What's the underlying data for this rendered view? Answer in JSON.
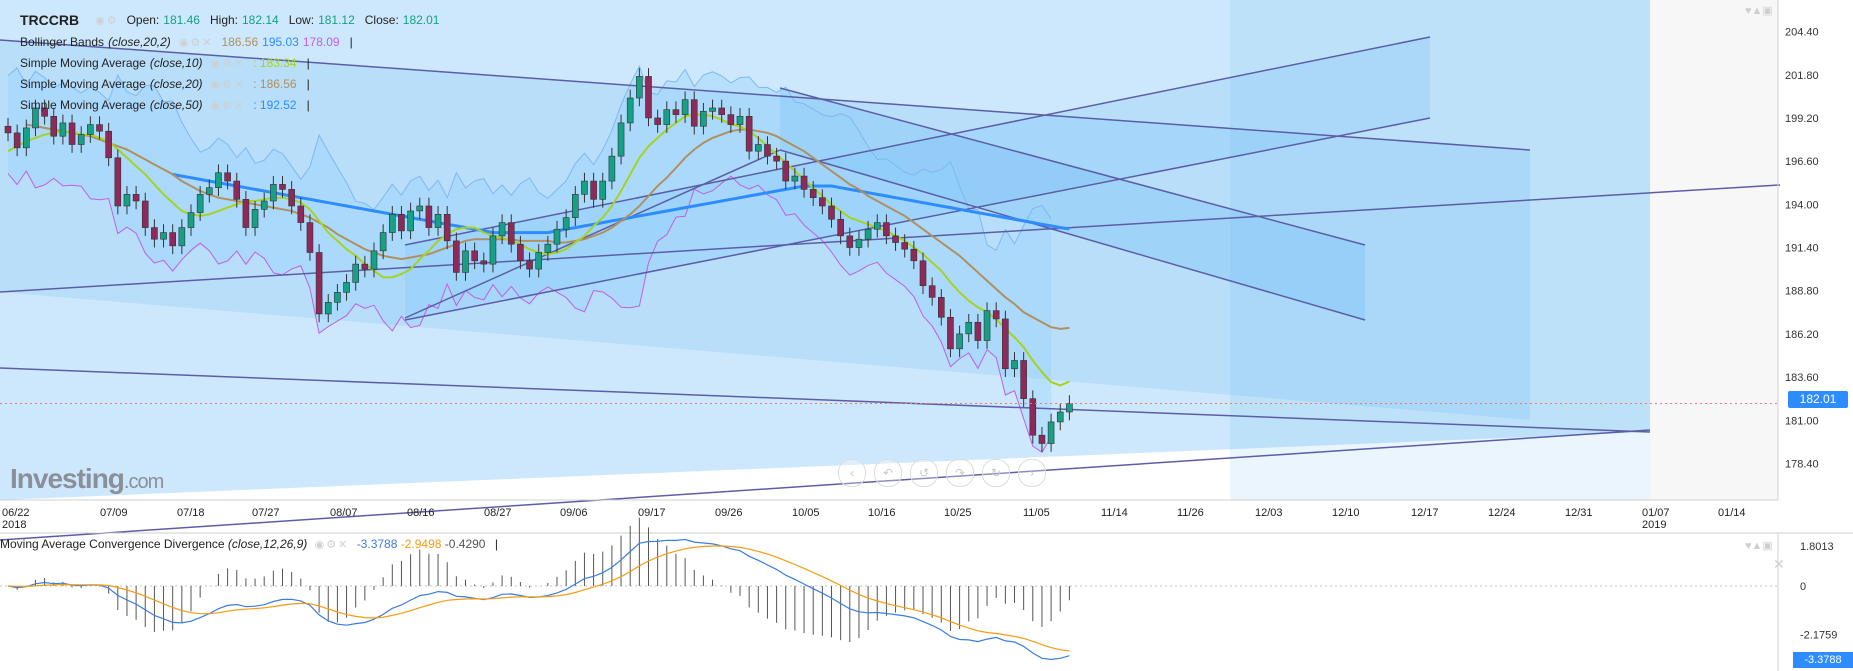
{
  "header": {
    "symbol": "TRCCRB",
    "open_label": "Open:",
    "open": "181.46",
    "high_label": "High:",
    "high": "182.14",
    "low_label": "Low:",
    "low": "181.12",
    "close_label": "Close:",
    "close": "182.01"
  },
  "indicators": {
    "bb": {
      "name": "Bollinger Bands",
      "params": "(close,20,2)",
      "v1": "186.56",
      "v2": "195.03",
      "v3": "178.09"
    },
    "sma10": {
      "name": "Simple Moving Average",
      "params": "(close,10)",
      "value": ": 183.34"
    },
    "sma20": {
      "name": "Simple Moving Average",
      "params": "(close,20)",
      "value": ": 186.56"
    },
    "sma50": {
      "name": "Simple Moving Average",
      "params": "(close,50)",
      "value": ": 192.52"
    }
  },
  "macd": {
    "name": "Moving Average Convergence Divergence",
    "params": "(close,12,26,9)",
    "v1": "-3.3788",
    "v2": "-2.9498",
    "v3": "-0.4290",
    "tag": "-3.3788"
  },
  "logo": {
    "main": "Investing",
    "suffix": ".com"
  },
  "price_tag": "182.01",
  "colors": {
    "up": "#16a085",
    "down": "#8e2a5a",
    "sma10": "#a6d320",
    "sma20": "#b09060",
    "sma50": "#2d8cff",
    "bb_band": "#8fd0ff",
    "bb_line": "#c060e0",
    "trend": "#5b5ea6",
    "channel": "#59b4f5",
    "macd": "#3b7ddd",
    "signal": "#f39c12"
  },
  "chart_data": {
    "type": "candlestick",
    "title": "TRCCRB",
    "y_ticks": [
      "204.40",
      "201.80",
      "199.20",
      "196.60",
      "194.00",
      "191.40",
      "188.80",
      "186.20",
      "183.60",
      "181.00",
      "178.40"
    ],
    "ylim": [
      176.2,
      206.3
    ],
    "x_ticks": [
      {
        "l1": "06/22",
        "l2": "2018"
      },
      {
        "l1": "07/09",
        "l2": ""
      },
      {
        "l1": "07/18",
        "l2": ""
      },
      {
        "l1": "07/27",
        "l2": ""
      },
      {
        "l1": "08/07",
        "l2": ""
      },
      {
        "l1": "08/16",
        "l2": ""
      },
      {
        "l1": "08/27",
        "l2": ""
      },
      {
        "l1": "09/06",
        "l2": ""
      },
      {
        "l1": "09/17",
        "l2": ""
      },
      {
        "l1": "09/26",
        "l2": ""
      },
      {
        "l1": "10/05",
        "l2": ""
      },
      {
        "l1": "10/16",
        "l2": ""
      },
      {
        "l1": "10/25",
        "l2": ""
      },
      {
        "l1": "11/05",
        "l2": ""
      },
      {
        "l1": "11/14",
        "l2": ""
      },
      {
        "l1": "11/26",
        "l2": ""
      },
      {
        "l1": "12/03",
        "l2": ""
      },
      {
        "l1": "12/10",
        "l2": ""
      },
      {
        "l1": "12/17",
        "l2": ""
      },
      {
        "l1": "12/24",
        "l2": ""
      },
      {
        "l1": "12/31",
        "l2": ""
      },
      {
        "l1": "01/07",
        "l2": "2019"
      },
      {
        "l1": "01/14",
        "l2": ""
      }
    ],
    "macd_ticks": [
      "1.8013",
      "0",
      "-2.1759"
    ],
    "macd_ylim": [
      -3.55,
      2.2
    ],
    "closes": [
      198.3,
      197.4,
      198.6,
      199.8,
      199.3,
      198.1,
      198.9,
      197.6,
      198.2,
      198.8,
      198.4,
      196.8,
      193.9,
      194.6,
      194.2,
      192.6,
      191.9,
      192.3,
      191.5,
      192.6,
      193.5,
      194.6,
      195.0,
      195.9,
      195.4,
      194.3,
      192.6,
      193.7,
      194.2,
      195.2,
      194.9,
      193.9,
      192.9,
      191.1,
      187.4,
      188.1,
      188.7,
      189.3,
      190.4,
      190.1,
      191.2,
      192.3,
      193.4,
      192.4,
      193.6,
      193.9,
      192.6,
      193.4,
      191.8,
      189.9,
      191.2,
      190.6,
      190.4,
      192.1,
      192.9,
      191.6,
      190.6,
      190.1,
      191.1,
      191.6,
      192.5,
      193.2,
      194.6,
      195.4,
      194.3,
      195.4,
      196.9,
      198.9,
      200.4,
      201.7,
      199.2,
      198.8,
      199.7,
      199.4,
      200.3,
      198.7,
      199.6,
      199.8,
      199.4,
      198.8,
      199.3,
      197.2,
      197.6,
      196.9,
      196.6,
      195.4,
      195.7,
      194.9,
      194.4,
      193.9,
      193.1,
      192.1,
      191.4,
      191.9,
      192.5,
      192.9,
      192.1,
      191.7,
      191.3,
      190.6,
      189.1,
      188.4,
      187.2,
      185.3,
      186.2,
      186.9,
      185.8,
      187.6,
      187.1,
      184.1,
      184.6,
      182.3,
      180.1,
      179.6,
      180.9,
      181.5,
      182.01
    ],
    "sma10": [
      197.2,
      197.5,
      197.8,
      198.0,
      198.2,
      198.3,
      198.4,
      198.3,
      198.2,
      198.2,
      198.0,
      197.8,
      197.3,
      196.8,
      196.3,
      195.8,
      195.2,
      194.6,
      194.1,
      193.6,
      193.4,
      193.3,
      193.4,
      193.6,
      193.8,
      194.0,
      194.2,
      194.2,
      194.3,
      194.4,
      194.4,
      194.3,
      194.1,
      193.7,
      193.0,
      192.3,
      191.8,
      191.3,
      190.9,
      190.4,
      190.0,
      189.6,
      189.6,
      189.8,
      190.1,
      190.7,
      191.2,
      191.8,
      192.2,
      192.5,
      192.6,
      192.6,
      192.3,
      192.1,
      192.0,
      191.8,
      191.6,
      191.3,
      191.1,
      191.0,
      191.1,
      191.3,
      191.7,
      192.1,
      192.7,
      193.2,
      193.9,
      194.8,
      195.8,
      196.8,
      197.5,
      198.0,
      198.5,
      198.9,
      199.3,
      199.4,
      199.4,
      199.3,
      199.1,
      198.8,
      198.7,
      198.4,
      198.0,
      197.5,
      197.0,
      196.5,
      196.0,
      195.5,
      195.0,
      194.5,
      194.0,
      193.6,
      193.2,
      193.0,
      192.8,
      192.6,
      192.4,
      192.1,
      191.8,
      191.4,
      191.0,
      190.5,
      190.0,
      189.3,
      188.7,
      188.2,
      187.8,
      187.5,
      187.1,
      186.5,
      186.0,
      185.4,
      184.6,
      183.9,
      183.3,
      183.1,
      183.34
    ],
    "sma20": [
      198.8,
      198.7,
      198.6,
      198.5,
      198.4,
      198.3,
      198.2,
      198.1,
      197.9,
      197.7,
      197.5,
      197.3,
      197.0,
      196.7,
      196.4,
      196.1,
      195.8,
      195.4,
      195.1,
      194.8,
      194.6,
      194.4,
      194.3,
      194.2,
      194.1,
      194.0,
      193.9,
      193.8,
      193.7,
      193.6,
      193.4,
      193.2,
      192.9,
      192.6,
      192.2,
      191.9,
      191.6,
      191.3,
      191.1,
      190.9,
      190.8,
      190.7,
      190.8,
      190.9,
      191.0,
      191.2,
      191.4,
      191.6,
      191.8,
      191.9,
      191.9,
      191.9,
      191.9,
      191.9,
      191.8,
      191.8,
      191.8,
      191.8,
      191.7,
      191.7,
      191.8,
      191.9,
      192.1,
      192.3,
      192.6,
      193.0,
      193.4,
      193.9,
      194.5,
      195.1,
      195.6,
      196.2,
      196.8,
      197.3,
      197.7,
      198.0,
      198.2,
      198.4,
      198.5,
      198.5,
      198.4,
      198.3,
      198.1,
      197.8,
      197.5,
      197.2,
      196.8,
      196.4,
      196.0,
      195.6,
      195.2,
      194.9,
      194.5,
      194.2,
      193.9,
      193.6,
      193.3,
      192.9,
      192.5,
      192.1,
      191.7,
      191.3,
      190.9,
      190.4,
      189.9,
      189.4,
      188.9,
      188.4,
      188.0,
      187.5,
      187.2,
      186.9,
      186.6,
      186.5,
      186.56
    ],
    "sma50": [
      195.8,
      195.7,
      195.6,
      195.5,
      195.4,
      195.3,
      195.2,
      195.1,
      195.0,
      194.9,
      194.8,
      194.7,
      194.6,
      194.5,
      194.4,
      194.3,
      194.2,
      194.1,
      194.0,
      193.9,
      193.8,
      193.7,
      193.6,
      193.5,
      193.4,
      193.3,
      193.2,
      193.1,
      193.0,
      192.9,
      192.8,
      192.7,
      192.6,
      192.5,
      192.4,
      192.3,
      192.3,
      192.3,
      192.3,
      192.3,
      192.3,
      192.3,
      192.4,
      192.5,
      192.6,
      192.7,
      192.8,
      192.9,
      193.0,
      193.1,
      193.2,
      193.3,
      193.4,
      193.5,
      193.6,
      193.7,
      193.8,
      193.9,
      194.0,
      194.1,
      194.2,
      194.3,
      194.4,
      194.5,
      194.6,
      194.7,
      194.8,
      194.9,
      195.0,
      195.1,
      195.1,
      195.1,
      195.1,
      195.0,
      194.9,
      194.8,
      194.7,
      194.6,
      194.5,
      194.4,
      194.3,
      194.2,
      194.1,
      194.0,
      193.9,
      193.8,
      193.7,
      193.6,
      193.5,
      193.4,
      193.3,
      193.2,
      193.1,
      193.0,
      192.9,
      192.8,
      192.7,
      192.6,
      192.52
    ]
  }
}
